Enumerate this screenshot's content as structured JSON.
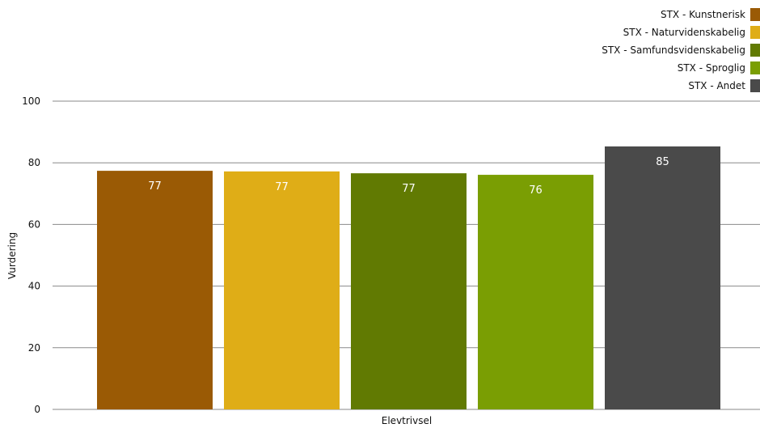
{
  "chart_data": {
    "type": "bar",
    "categories": [
      "Elevtrivsel"
    ],
    "xlabel": "Elevtrivsel",
    "ylabel": "Vurdering",
    "ylim": [
      0,
      100
    ],
    "yticks": [
      0,
      20,
      40,
      60,
      80,
      100
    ],
    "grid": true,
    "legend_position": "top-right",
    "series": [
      {
        "name": "STX - Kunstnerisk",
        "values": [
          77.4
        ],
        "label": "77",
        "color": "#9a5a05"
      },
      {
        "name": "STX - Naturvidenskabelig",
        "values": [
          77.2
        ],
        "label": "77",
        "color": "#dfad17"
      },
      {
        "name": "STX - Samfundsvidenskabelig",
        "values": [
          76.6
        ],
        "label": "77",
        "color": "#617a02"
      },
      {
        "name": "STX - Sproglig",
        "values": [
          76.1
        ],
        "label": "76",
        "color": "#7a9e03"
      },
      {
        "name": "STX - Andet",
        "values": [
          85.3
        ],
        "label": "85",
        "color": "#4a4a4a"
      }
    ]
  }
}
